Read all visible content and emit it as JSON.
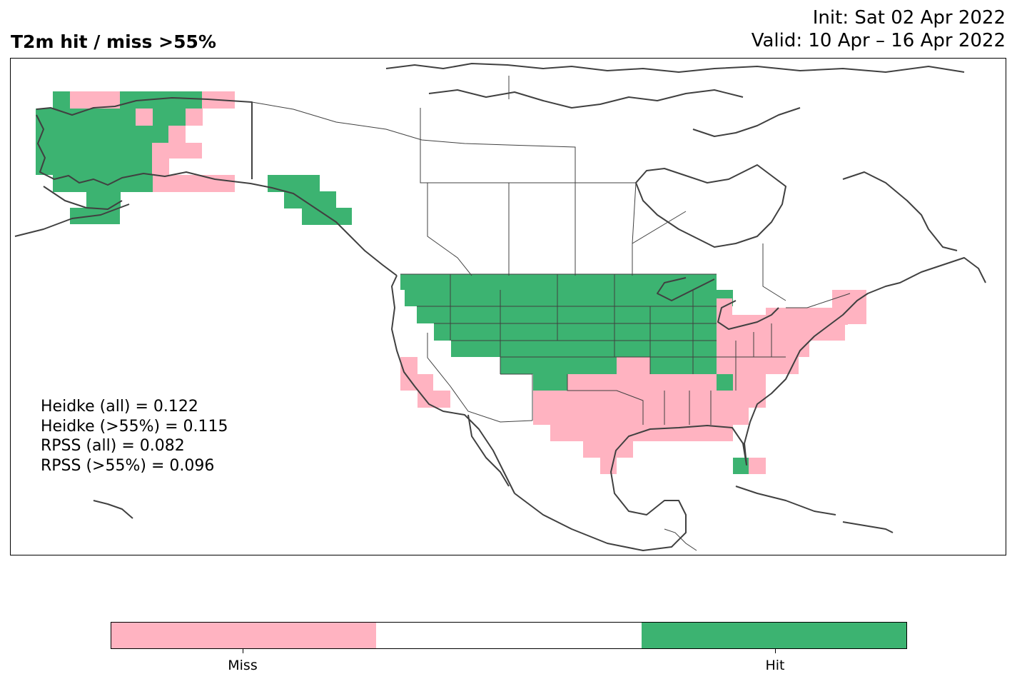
{
  "header": {
    "title": "T2m hit / miss  >55%",
    "init": "Init: Sat 02 Apr 2022",
    "valid": "Valid: 10 Apr – 16 Apr 2022"
  },
  "scores": [
    "Heidke (all) = 0.122",
    "Heidke (>55%) = 0.115",
    "RPSS (all) = 0.082",
    "RPSS (>55%) = 0.096"
  ],
  "legend": {
    "categories": [
      {
        "label": "Miss",
        "color": "#ffb3c1"
      },
      {
        "label": "",
        "color": "#ffffff"
      },
      {
        "label": "Hit",
        "color": "#3cb371"
      }
    ]
  },
  "map": {
    "region": "North America",
    "miss_color": "#ffb3c1",
    "hit_color": "#3cb371",
    "coastline_color": "#404040"
  }
}
